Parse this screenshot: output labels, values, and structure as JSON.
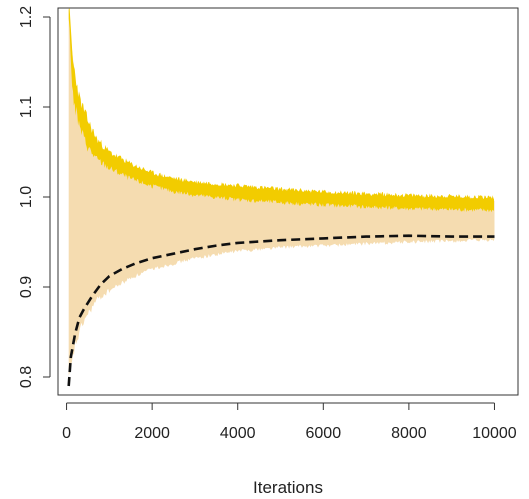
{
  "chart_data": {
    "type": "line",
    "title": "",
    "xlabel": "Iterations",
    "ylabel": "",
    "xlim": [
      -200,
      10550
    ],
    "ylim": [
      0.78,
      1.21
    ],
    "x_ticks": [
      0,
      2000,
      4000,
      6000,
      8000,
      10000
    ],
    "x_tick_labels": [
      "0",
      "2000",
      "4000",
      "6000",
      "8000",
      "10000"
    ],
    "y_ticks": [
      0.8,
      0.9,
      1.0,
      1.1,
      1.2
    ],
    "y_tick_labels": [
      "0.8",
      "0.9",
      "1.0",
      "1.1",
      "1.2"
    ],
    "grid": false,
    "legend": "none",
    "colors": {
      "band_fill": "#f5dcb0",
      "upper_band": "#f2cc00",
      "dashed_line": "#111111",
      "axis": "#333333"
    },
    "band": {
      "x": [
        50,
        200,
        400,
        700,
        1000,
        1500,
        2000,
        2500,
        3000,
        3500,
        4000,
        5000,
        6000,
        7000,
        8000,
        9000,
        10000
      ],
      "lower": [
        0.795,
        0.835,
        0.862,
        0.885,
        0.896,
        0.91,
        0.92,
        0.926,
        0.932,
        0.936,
        0.94,
        0.944,
        0.946,
        0.948,
        0.95,
        0.951,
        0.952
      ],
      "upper": [
        1.21,
        1.13,
        1.08,
        1.058,
        1.045,
        1.032,
        1.025,
        1.019,
        1.015,
        1.012,
        1.01,
        1.006,
        1.003,
        1.001,
        0.999,
        0.998,
        0.997
      ]
    },
    "series": [
      {
        "style": "dashed",
        "x": [
          50,
          100,
          200,
          300,
          400,
          600,
          800,
          1000,
          1300,
          1600,
          2000,
          2500,
          3000,
          3500,
          4000,
          5000,
          6000,
          7000,
          8000,
          9000,
          10000
        ],
        "values": [
          0.79,
          0.822,
          0.848,
          0.866,
          0.875,
          0.89,
          0.903,
          0.912,
          0.92,
          0.926,
          0.932,
          0.937,
          0.942,
          0.946,
          0.949,
          0.952,
          0.954,
          0.956,
          0.957,
          0.956,
          0.956
        ]
      }
    ],
    "upper_band_region": {
      "x": [
        50,
        150,
        300,
        500,
        700,
        1000,
        1500,
        2000,
        2500,
        3000,
        4000,
        5000,
        6000,
        7000,
        8000,
        9000,
        10000
      ],
      "lower": [
        1.2,
        1.11,
        1.078,
        1.055,
        1.042,
        1.032,
        1.02,
        1.012,
        1.006,
        1.002,
        0.997,
        0.994,
        0.991,
        0.989,
        0.987,
        0.986,
        0.985
      ],
      "upper": [
        1.215,
        1.15,
        1.11,
        1.085,
        1.065,
        1.05,
        1.037,
        1.027,
        1.021,
        1.017,
        1.013,
        1.009,
        1.006,
        1.004,
        1.002,
        1.001,
        1.0
      ]
    }
  }
}
